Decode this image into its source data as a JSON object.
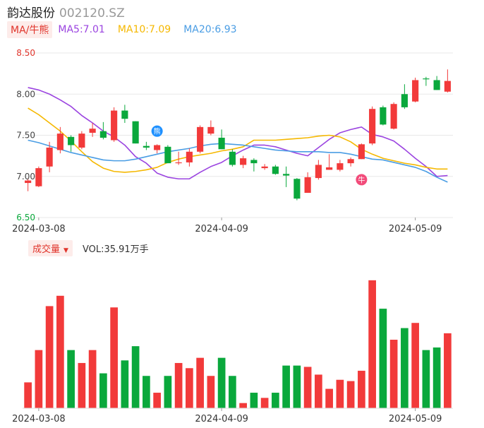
{
  "header": {
    "name": "韵达股份",
    "code": "002120.SZ"
  },
  "ma_legend": {
    "badge": "MA/牛熊",
    "items": [
      {
        "label": "MA5:7.01",
        "color": "#9b44e0"
      },
      {
        "label": "MA10:7.09",
        "color": "#f5b800"
      },
      {
        "label": "MA20:6.93",
        "color": "#4a9de4"
      }
    ]
  },
  "volume_legend": {
    "badge": "成交量",
    "value_text": "VOL:35.91万手"
  },
  "colors": {
    "up": "#f23a3a",
    "down": "#0aa83c",
    "grid": "#e8e8e8",
    "axis_text": "#444444"
  },
  "badges": [
    {
      "symbol": "熊",
      "index": 12,
      "price": 7.55,
      "color": "#1e90ff"
    },
    {
      "symbol": "牛",
      "index": 31,
      "price": 6.96,
      "color": "#f24b7a"
    }
  ],
  "chart_data": [
    {
      "type": "candlestick",
      "ylim": [
        6.5,
        8.5
      ],
      "yticks": [
        "8.50",
        "8.00",
        "7.50",
        "7.00",
        "6.50"
      ],
      "x_tick_labels": [
        {
          "label": "2024-03-08",
          "index": 1
        },
        {
          "label": "2024-04-09",
          "index": 18
        },
        {
          "label": "2024-05-09",
          "index": 36
        }
      ],
      "candles": [
        {
          "o": 6.92,
          "h": 6.97,
          "l": 6.82,
          "c": 6.95
        },
        {
          "o": 6.88,
          "h": 7.12,
          "l": 6.87,
          "c": 7.1
        },
        {
          "o": 7.12,
          "h": 7.42,
          "l": 7.05,
          "c": 7.35
        },
        {
          "o": 7.32,
          "h": 7.6,
          "l": 7.28,
          "c": 7.52
        },
        {
          "o": 7.48,
          "h": 7.5,
          "l": 7.3,
          "c": 7.38
        },
        {
          "o": 7.35,
          "h": 7.55,
          "l": 7.33,
          "c": 7.52
        },
        {
          "o": 7.53,
          "h": 7.65,
          "l": 7.48,
          "c": 7.58
        },
        {
          "o": 7.55,
          "h": 7.66,
          "l": 7.45,
          "c": 7.47
        },
        {
          "o": 7.44,
          "h": 7.84,
          "l": 7.42,
          "c": 7.8
        },
        {
          "o": 7.8,
          "h": 7.87,
          "l": 7.65,
          "c": 7.7
        },
        {
          "o": 7.67,
          "h": 7.67,
          "l": 7.4,
          "c": 7.4
        },
        {
          "o": 7.37,
          "h": 7.42,
          "l": 7.32,
          "c": 7.35
        },
        {
          "o": 7.32,
          "h": 7.39,
          "l": 7.28,
          "c": 7.38
        },
        {
          "o": 7.36,
          "h": 7.38,
          "l": 7.16,
          "c": 7.16
        },
        {
          "o": 7.16,
          "h": 7.3,
          "l": 7.14,
          "c": 7.17
        },
        {
          "o": 7.17,
          "h": 7.34,
          "l": 7.12,
          "c": 7.3
        },
        {
          "o": 7.3,
          "h": 7.62,
          "l": 7.28,
          "c": 7.6
        },
        {
          "o": 7.52,
          "h": 7.68,
          "l": 7.5,
          "c": 7.6
        },
        {
          "o": 7.47,
          "h": 7.57,
          "l": 7.33,
          "c": 7.33
        },
        {
          "o": 7.3,
          "h": 7.33,
          "l": 7.12,
          "c": 7.14
        },
        {
          "o": 7.14,
          "h": 7.25,
          "l": 7.1,
          "c": 7.22
        },
        {
          "o": 7.2,
          "h": 7.22,
          "l": 7.06,
          "c": 7.16
        },
        {
          "o": 7.1,
          "h": 7.15,
          "l": 7.08,
          "c": 7.12
        },
        {
          "o": 7.12,
          "h": 7.14,
          "l": 7.02,
          "c": 7.03
        },
        {
          "o": 7.03,
          "h": 7.12,
          "l": 6.87,
          "c": 7.01
        },
        {
          "o": 6.97,
          "h": 6.98,
          "l": 6.71,
          "c": 6.73
        },
        {
          "o": 6.8,
          "h": 7.05,
          "l": 6.8,
          "c": 6.99
        },
        {
          "o": 6.98,
          "h": 7.2,
          "l": 6.96,
          "c": 7.14
        },
        {
          "o": 7.08,
          "h": 7.27,
          "l": 7.08,
          "c": 7.11
        },
        {
          "o": 7.08,
          "h": 7.2,
          "l": 7.06,
          "c": 7.16
        },
        {
          "o": 7.16,
          "h": 7.23,
          "l": 7.12,
          "c": 7.21
        },
        {
          "o": 7.21,
          "h": 7.4,
          "l": 7.21,
          "c": 7.39
        },
        {
          "o": 7.4,
          "h": 7.85,
          "l": 7.38,
          "c": 7.82
        },
        {
          "o": 7.84,
          "h": 7.86,
          "l": 7.62,
          "c": 7.63
        },
        {
          "o": 7.58,
          "h": 7.9,
          "l": 7.57,
          "c": 7.88
        },
        {
          "o": 8.0,
          "h": 8.12,
          "l": 7.82,
          "c": 7.84
        },
        {
          "o": 7.91,
          "h": 8.2,
          "l": 7.9,
          "c": 8.17
        },
        {
          "o": 8.19,
          "h": 8.21,
          "l": 8.1,
          "c": 8.18
        },
        {
          "o": 8.17,
          "h": 8.22,
          "l": 8.05,
          "c": 8.05
        },
        {
          "o": 8.03,
          "h": 8.3,
          "l": 8.02,
          "c": 8.16
        }
      ],
      "series": [
        {
          "name": "MA5",
          "color": "#9b44e0",
          "values": [
            8.08,
            8.05,
            8.0,
            7.93,
            7.85,
            7.74,
            7.65,
            7.55,
            7.48,
            7.38,
            7.24,
            7.16,
            7.04,
            6.99,
            6.97,
            6.97,
            7.05,
            7.12,
            7.17,
            7.25,
            7.32,
            7.38,
            7.38,
            7.36,
            7.32,
            7.28,
            7.25,
            7.35,
            7.45,
            7.53,
            7.57,
            7.6,
            7.51,
            7.48,
            7.43,
            7.33,
            7.22,
            7.12,
            7.0,
            7.01
          ]
        },
        {
          "name": "MA10",
          "color": "#f5b800",
          "values": [
            7.83,
            7.75,
            7.65,
            7.55,
            7.43,
            7.3,
            7.18,
            7.1,
            7.06,
            7.05,
            7.06,
            7.08,
            7.11,
            7.17,
            7.21,
            7.24,
            7.26,
            7.28,
            7.31,
            7.33,
            7.36,
            7.44,
            7.44,
            7.44,
            7.45,
            7.46,
            7.47,
            7.49,
            7.5,
            7.48,
            7.42,
            7.33,
            7.27,
            7.22,
            7.19,
            7.16,
            7.14,
            7.11,
            7.09,
            7.09
          ]
        },
        {
          "name": "MA20",
          "color": "#4a9de4",
          "values": [
            7.44,
            7.41,
            7.37,
            7.33,
            7.29,
            7.26,
            7.23,
            7.2,
            7.19,
            7.19,
            7.21,
            7.24,
            7.27,
            7.3,
            7.32,
            7.34,
            7.37,
            7.39,
            7.4,
            7.39,
            7.38,
            7.36,
            7.34,
            7.32,
            7.31,
            7.3,
            7.3,
            7.3,
            7.29,
            7.29,
            7.27,
            7.24,
            7.21,
            7.2,
            7.17,
            7.14,
            7.11,
            7.06,
            6.99,
            6.93
          ]
        }
      ]
    },
    {
      "type": "bar",
      "name": "成交量",
      "x_tick_labels": [
        {
          "label": "2024-03-08",
          "index": 1
        },
        {
          "label": "2024-04-09",
          "index": 18
        },
        {
          "label": "2024-05-09",
          "index": 36
        }
      ],
      "volume_relative": [
        0.2,
        0.45,
        0.79,
        0.87,
        0.45,
        0.35,
        0.45,
        0.27,
        0.78,
        0.37,
        0.48,
        0.25,
        0.12,
        0.25,
        0.35,
        0.31,
        0.39,
        0.25,
        0.39,
        0.25,
        0.04,
        0.12,
        0.08,
        0.12,
        0.33,
        0.33,
        0.32,
        0.26,
        0.15,
        0.22,
        0.21,
        0.29,
        0.99,
        0.77,
        0.53,
        0.62,
        0.66,
        0.45,
        0.47,
        0.58
      ]
    }
  ]
}
